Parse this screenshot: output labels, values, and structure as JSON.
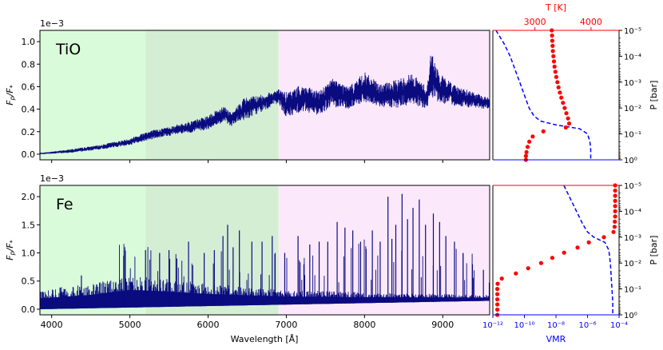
{
  "chart_data": [
    {
      "type": "line",
      "panel": "top-left",
      "annotation": "TiO",
      "ylabel": "F_p/F_*",
      "y_multiplier": "1e−3",
      "xlim": [
        3850,
        9600
      ],
      "ylim": [
        -0.05,
        1.1
      ],
      "y_ticks": [
        "0.0",
        "0.2",
        "0.4",
        "0.6",
        "0.8",
        "1.0"
      ],
      "y_tick_values": [
        0.0,
        0.2,
        0.4,
        0.6,
        0.8,
        1.0
      ],
      "x_tick_values": [
        4000,
        5000,
        6000,
        7000,
        8000,
        9000
      ],
      "regions": [
        {
          "from": 3850,
          "to": 5200,
          "color": "#d9fbd9"
        },
        {
          "from": 5200,
          "to": 6900,
          "color": "#d4eed4"
        },
        {
          "from": 6900,
          "to": 9600,
          "color": "#fbe9fb"
        }
      ],
      "series": [
        {
          "color": "#0b0b80",
          "envelope": {
            "x": [
              3850,
              4200,
              4600,
              5000,
              5200,
              5400,
              5700,
              6000,
              6200,
              6300,
              6450,
              6700,
              6900,
              7000,
              7200,
              7400,
              7600,
              7800,
              8000,
              8200,
              8400,
              8600,
              8800,
              8850,
              8950,
              9200,
              9600
            ],
            "low": [
              0.0,
              0.01,
              0.04,
              0.08,
              0.12,
              0.15,
              0.18,
              0.22,
              0.28,
              0.25,
              0.3,
              0.38,
              0.45,
              0.32,
              0.38,
              0.35,
              0.42,
              0.4,
              0.46,
              0.42,
              0.4,
              0.44,
              0.4,
              0.5,
              0.46,
              0.42,
              0.4
            ],
            "high": [
              0.01,
              0.04,
              0.08,
              0.14,
              0.2,
              0.23,
              0.28,
              0.34,
              0.44,
              0.36,
              0.5,
              0.53,
              0.58,
              0.55,
              0.62,
              0.56,
              0.68,
              0.6,
              0.73,
              0.62,
              0.66,
              0.72,
              0.6,
              0.93,
              0.72,
              0.6,
              0.5
            ]
          }
        }
      ]
    },
    {
      "type": "line",
      "panel": "bottom-left",
      "annotation": "Fe",
      "ylabel": "F_p/F_*",
      "y_multiplier": "1e−3",
      "xlabel": "Wavelength [Å]",
      "xlim": [
        3850,
        9600
      ],
      "ylim": [
        -0.1,
        2.2
      ],
      "y_ticks": [
        "0.0",
        "0.5",
        "1.0",
        "1.5",
        "2.0"
      ],
      "y_tick_values": [
        0.0,
        0.5,
        1.0,
        1.5,
        2.0
      ],
      "x_ticks": [
        "4000",
        "5000",
        "6000",
        "7000",
        "8000",
        "9000"
      ],
      "x_tick_values": [
        4000,
        5000,
        6000,
        7000,
        8000,
        9000
      ],
      "regions": [
        {
          "from": 3850,
          "to": 5200,
          "color": "#d9fbd9"
        },
        {
          "from": 5200,
          "to": 6900,
          "color": "#d4eed4"
        },
        {
          "from": 6900,
          "to": 9600,
          "color": "#fbe9fb"
        }
      ],
      "series": [
        {
          "color": "#0b0b80",
          "continuum": {
            "x": [
              3850,
              9600
            ],
            "y": [
              0.0,
              0.15
            ]
          },
          "envelope": {
            "x": [
              3850,
              4500,
              5000,
              5400,
              6000,
              6900,
              8000,
              9600
            ],
            "high": [
              0.35,
              0.45,
              0.6,
              0.55,
              0.45,
              0.35,
              0.3,
              0.25
            ]
          },
          "peaks": [
            {
              "x": 4380,
              "y": 0.6
            },
            {
              "x": 4920,
              "y": 0.95
            },
            {
              "x": 5200,
              "y": 1.05
            },
            {
              "x": 5380,
              "y": 1.0
            },
            {
              "x": 5500,
              "y": 1.05
            },
            {
              "x": 5600,
              "y": 0.9
            },
            {
              "x": 5750,
              "y": 1.2
            },
            {
              "x": 5950,
              "y": 1.0
            },
            {
              "x": 6080,
              "y": 1.05
            },
            {
              "x": 6190,
              "y": 1.3
            },
            {
              "x": 6250,
              "y": 1.5
            },
            {
              "x": 6320,
              "y": 1.1
            },
            {
              "x": 6400,
              "y": 1.4
            },
            {
              "x": 6560,
              "y": 1.2
            },
            {
              "x": 6690,
              "y": 1.2
            },
            {
              "x": 6820,
              "y": 1.3
            },
            {
              "x": 6980,
              "y": 1.0
            },
            {
              "x": 7150,
              "y": 1.3
            },
            {
              "x": 7300,
              "y": 1.15
            },
            {
              "x": 7420,
              "y": 1.2
            },
            {
              "x": 7530,
              "y": 1.2
            },
            {
              "x": 7650,
              "y": 1.55
            },
            {
              "x": 7750,
              "y": 1.45
            },
            {
              "x": 7850,
              "y": 1.4
            },
            {
              "x": 7950,
              "y": 1.2
            },
            {
              "x": 8100,
              "y": 1.4
            },
            {
              "x": 8200,
              "y": 1.2
            },
            {
              "x": 8300,
              "y": 2.0
            },
            {
              "x": 8350,
              "y": 1.25
            },
            {
              "x": 8400,
              "y": 1.5
            },
            {
              "x": 8480,
              "y": 2.05
            },
            {
              "x": 8550,
              "y": 1.6
            },
            {
              "x": 8620,
              "y": 1.8
            },
            {
              "x": 8700,
              "y": 1.95
            },
            {
              "x": 8780,
              "y": 1.5
            },
            {
              "x": 8880,
              "y": 1.7
            },
            {
              "x": 8960,
              "y": 1.55
            },
            {
              "x": 9040,
              "y": 1.3
            },
            {
              "x": 9150,
              "y": 1.2
            },
            {
              "x": 9260,
              "y": 1.0
            },
            {
              "x": 9380,
              "y": 0.8
            },
            {
              "x": 9520,
              "y": 0.7
            }
          ]
        }
      ]
    },
    {
      "type": "scatter",
      "panel": "top-right",
      "top_axis_label": "T [K]",
      "top_axis_color": "#ff0000",
      "top_ticks": [
        "3000",
        "4000"
      ],
      "top_tick_values": [
        3000,
        4000
      ],
      "xlim_T": [
        2250,
        4500
      ],
      "right_axis_label": "P [bar]",
      "right_ticks": [
        "10⁻⁵",
        "10⁻⁴",
        "10⁻³",
        "10⁻²",
        "10⁻¹",
        "10⁰"
      ],
      "right_tick_exponents": [
        -5,
        -4,
        -3,
        -2,
        -1,
        0
      ],
      "ylim_logP": [
        -5,
        0
      ],
      "xlim_logVMR": [
        -12,
        -4
      ],
      "temperature_profile": {
        "color": "#ff0000",
        "logP": [
          -5.0,
          -4.8,
          -4.6,
          -4.4,
          -4.2,
          -4.0,
          -3.8,
          -3.6,
          -3.4,
          -3.2,
          -3.0,
          -2.8,
          -2.6,
          -2.4,
          -2.2,
          -2.0,
          -1.8,
          -1.6,
          -1.4,
          -1.25,
          -1.1,
          -0.9,
          -0.7,
          -0.5,
          -0.3,
          -0.15,
          0.0
        ],
        "T": [
          3300,
          3305,
          3310,
          3315,
          3320,
          3330,
          3340,
          3350,
          3365,
          3380,
          3400,
          3420,
          3445,
          3470,
          3500,
          3530,
          3560,
          3590,
          3610,
          3550,
          3150,
          2960,
          2900,
          2870,
          2850,
          2840,
          2840
        ]
      },
      "vmr_profile": {
        "color": "#0000ff",
        "style": "dashed",
        "logP": [
          -5.0,
          -4.5,
          -4.0,
          -3.5,
          -3.0,
          -2.5,
          -2.0,
          -1.7,
          -1.5,
          -1.35,
          -1.2,
          -1.0,
          -0.7,
          -0.4,
          -0.2,
          0.0
        ],
        "logVMR": [
          -11.8,
          -11.3,
          -10.9,
          -10.6,
          -10.3,
          -10.0,
          -9.7,
          -9.4,
          -9.0,
          -8.0,
          -6.5,
          -6.0,
          -5.85,
          -5.8,
          -5.8,
          -5.8
        ]
      }
    },
    {
      "type": "scatter",
      "panel": "bottom-right",
      "bottom_axis_label": "VMR",
      "bottom_axis_color": "#0000ff",
      "bottom_ticks": [
        "10⁻¹²",
        "10⁻¹⁰",
        "10⁻⁸",
        "10⁻⁶",
        "10⁻⁴"
      ],
      "bottom_tick_exponents": [
        -12,
        -10,
        -8,
        -6,
        -4
      ],
      "xlim_logVMR": [
        -12,
        -4
      ],
      "xlim_T": [
        2250,
        4500
      ],
      "right_axis_label": "P [bar]",
      "right_ticks": [
        "10⁻⁵",
        "10⁻⁴",
        "10⁻³",
        "10⁻²",
        "10⁻¹",
        "10⁰"
      ],
      "right_tick_exponents": [
        -5,
        -4,
        -3,
        -2,
        -1,
        0
      ],
      "ylim_logP": [
        -5,
        0
      ],
      "temperature_profile": {
        "color": "#ff0000",
        "logP": [
          -5.0,
          -4.8,
          -4.6,
          -4.4,
          -4.2,
          -4.0,
          -3.8,
          -3.6,
          -3.4,
          -3.2,
          -3.0,
          -2.8,
          -2.6,
          -2.4,
          -2.2,
          -2.0,
          -1.8,
          -1.6,
          -1.4,
          -1.2,
          -1.0,
          -0.8,
          -0.6,
          -0.4,
          -0.2,
          0.0
        ],
        "T": [
          4430,
          4430,
          4430,
          4430,
          4430,
          4430,
          4430,
          4425,
          4420,
          4400,
          4230,
          3960,
          3760,
          3520,
          3310,
          3110,
          2880,
          2660,
          2410,
          2335,
          2330,
          2330,
          2330,
          2330,
          2330,
          2330
        ]
      },
      "vmr_profile": {
        "color": "#0000ff",
        "style": "dashed",
        "logP": [
          -5.0,
          -4.5,
          -4.0,
          -3.5,
          -3.2,
          -3.0,
          -2.8,
          -2.5,
          -2.0,
          -1.5,
          -1.0,
          -0.5,
          0.0
        ],
        "logVMR": [
          -7.5,
          -7.1,
          -6.7,
          -6.3,
          -6.0,
          -5.6,
          -4.9,
          -4.65,
          -4.55,
          -4.5,
          -4.45,
          -4.4,
          -4.4
        ]
      }
    }
  ]
}
